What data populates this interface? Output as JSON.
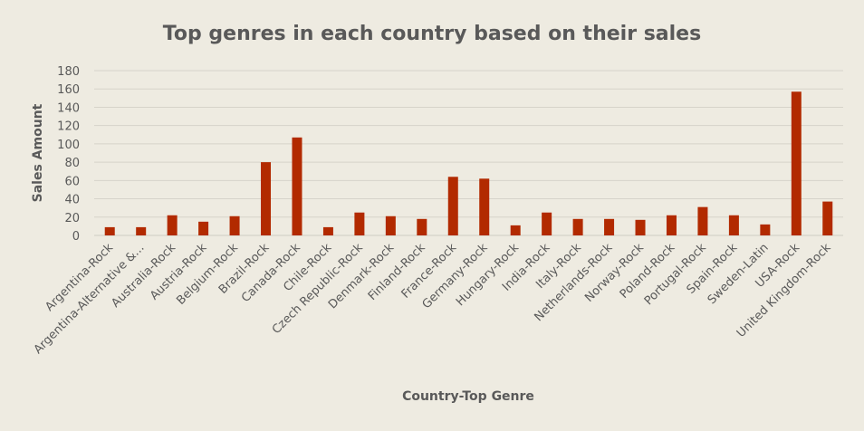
{
  "chart_data": {
    "type": "bar",
    "title": "Top genres in each country based on their sales",
    "xlabel": "Country-Top Genre",
    "ylabel": "Sales Amount",
    "ylim": [
      0,
      180
    ],
    "y_ticks": [
      "0",
      "20",
      "40",
      "60",
      "80",
      "100",
      "120",
      "140",
      "160",
      "180"
    ],
    "grid": true,
    "legend": "none",
    "bar_color": "#b22a00",
    "categories": [
      "Argentina-Rock",
      "Argentina-Alternative &...",
      "Australia-Rock",
      "Austria-Rock",
      "Belgium-Rock",
      "Brazil-Rock",
      "Canada-Rock",
      "Chile-Rock",
      "Czech Republic-Rock",
      "Denmark-Rock",
      "Finland-Rock",
      "France-Rock",
      "Germany-Rock",
      "Hungary-Rock",
      "India-Rock",
      "Italy-Rock",
      "Netherlands-Rock",
      "Norway-Rock",
      "Poland-Rock",
      "Portugal-Rock",
      "Spain-Rock",
      "Sweden-Latin",
      "USA-Rock",
      "United Kingdom-Rock"
    ],
    "values": [
      9,
      9,
      22,
      15,
      21,
      80,
      107,
      9,
      25,
      21,
      18,
      64,
      62,
      11,
      25,
      18,
      18,
      17,
      22,
      31,
      22,
      12,
      157,
      37
    ]
  }
}
